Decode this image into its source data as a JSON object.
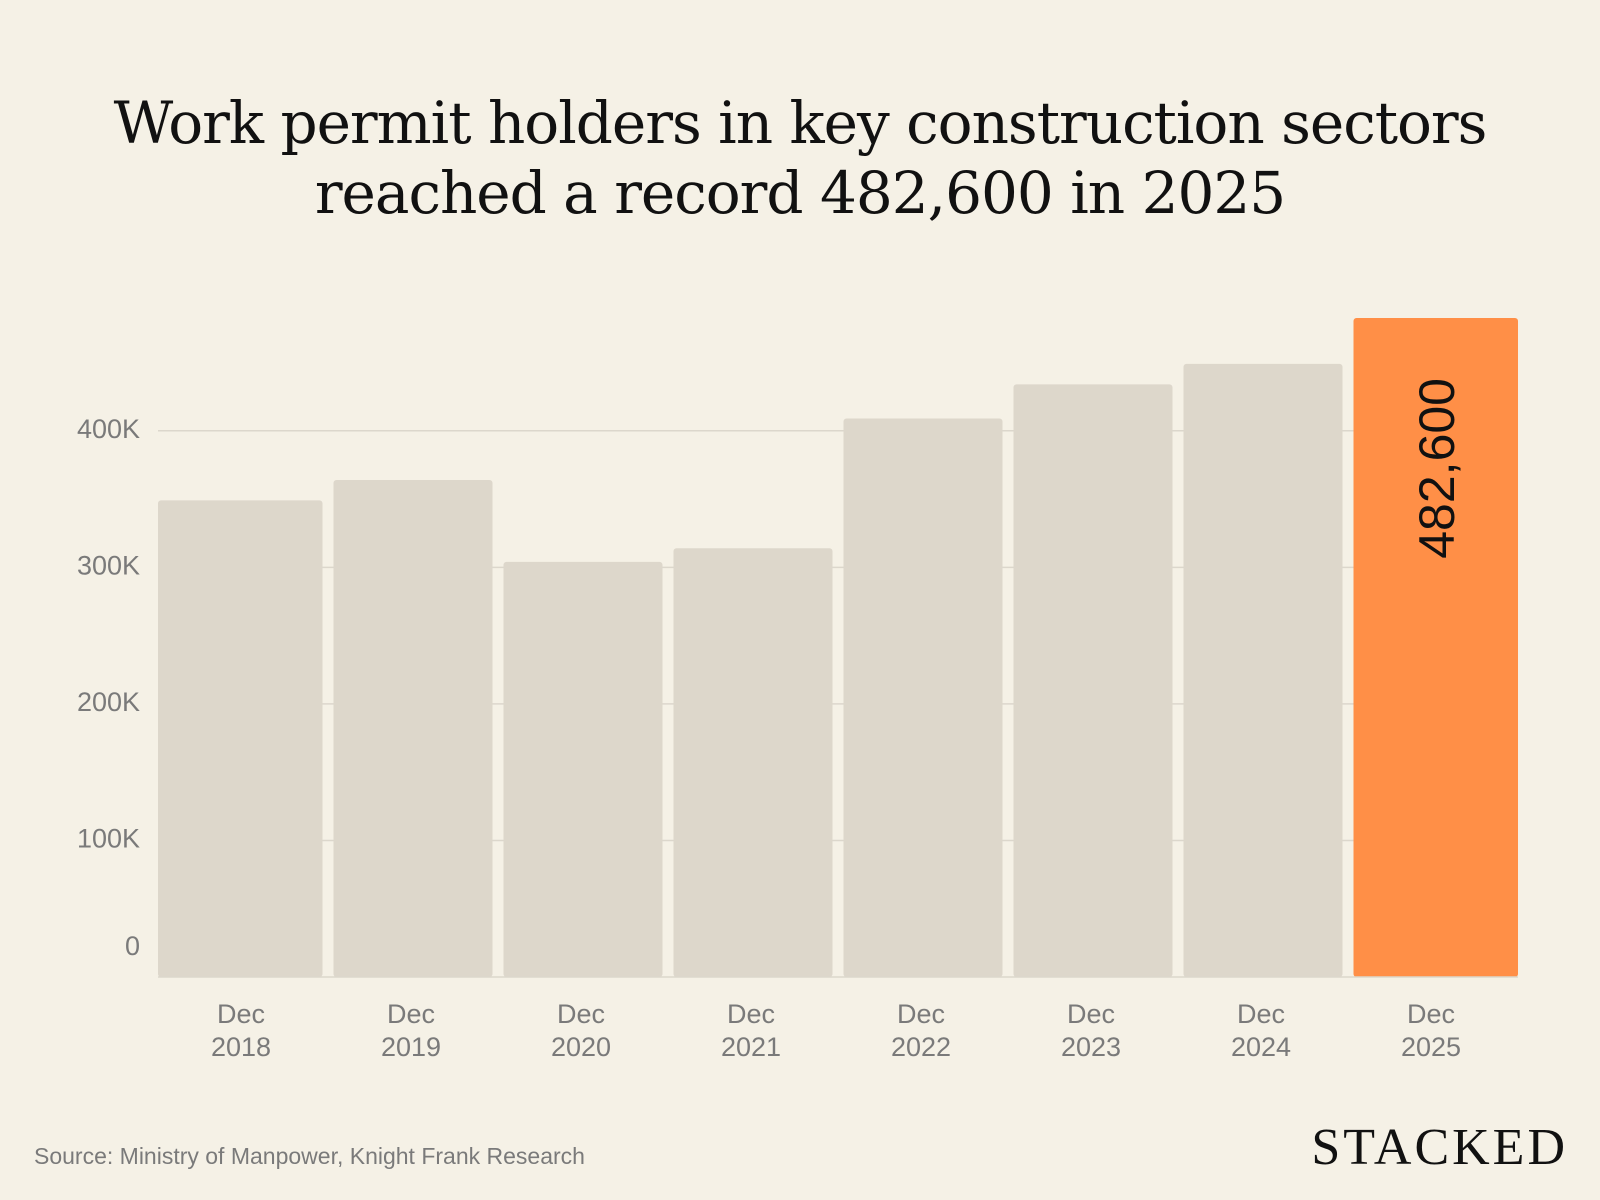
{
  "title_lines": [
    "Work permit holders in key construction sectors",
    "reached a record 482,600 in 2025"
  ],
  "source": "Source: Ministry of Manpower, Knight Frank Research",
  "brand": "STACKED",
  "colors": {
    "background": "#f5f1e6",
    "bar": "#ddd7cb",
    "highlight_bar": "#ff8f47",
    "grid": "#dcd7cc",
    "tick_text": "#7a7a7a",
    "value_label": "#111111"
  },
  "chart_data": {
    "type": "bar",
    "categories": [
      [
        "Dec",
        "2018"
      ],
      [
        "Dec",
        "2019"
      ],
      [
        "Dec",
        "2020"
      ],
      [
        "Dec",
        "2021"
      ],
      [
        "Dec",
        "2022"
      ],
      [
        "Dec",
        "2023"
      ],
      [
        "Dec",
        "2024"
      ],
      [
        "Dec",
        "2025"
      ]
    ],
    "values": [
      349000,
      364000,
      304000,
      314000,
      409000,
      434000,
      449000,
      482600
    ],
    "highlight_index": 7,
    "data_labels": [
      {
        "index": 7,
        "text": "482,600"
      }
    ],
    "y_ticks": [
      {
        "value": 0,
        "label": "0"
      },
      {
        "value": 100000,
        "label": "100K"
      },
      {
        "value": 200000,
        "label": "200K"
      },
      {
        "value": 300000,
        "label": "300K"
      },
      {
        "value": 400000,
        "label": "400K"
      }
    ],
    "ylim": [
      0,
      482600
    ],
    "grid": true,
    "xlabel": "",
    "ylabel": ""
  }
}
